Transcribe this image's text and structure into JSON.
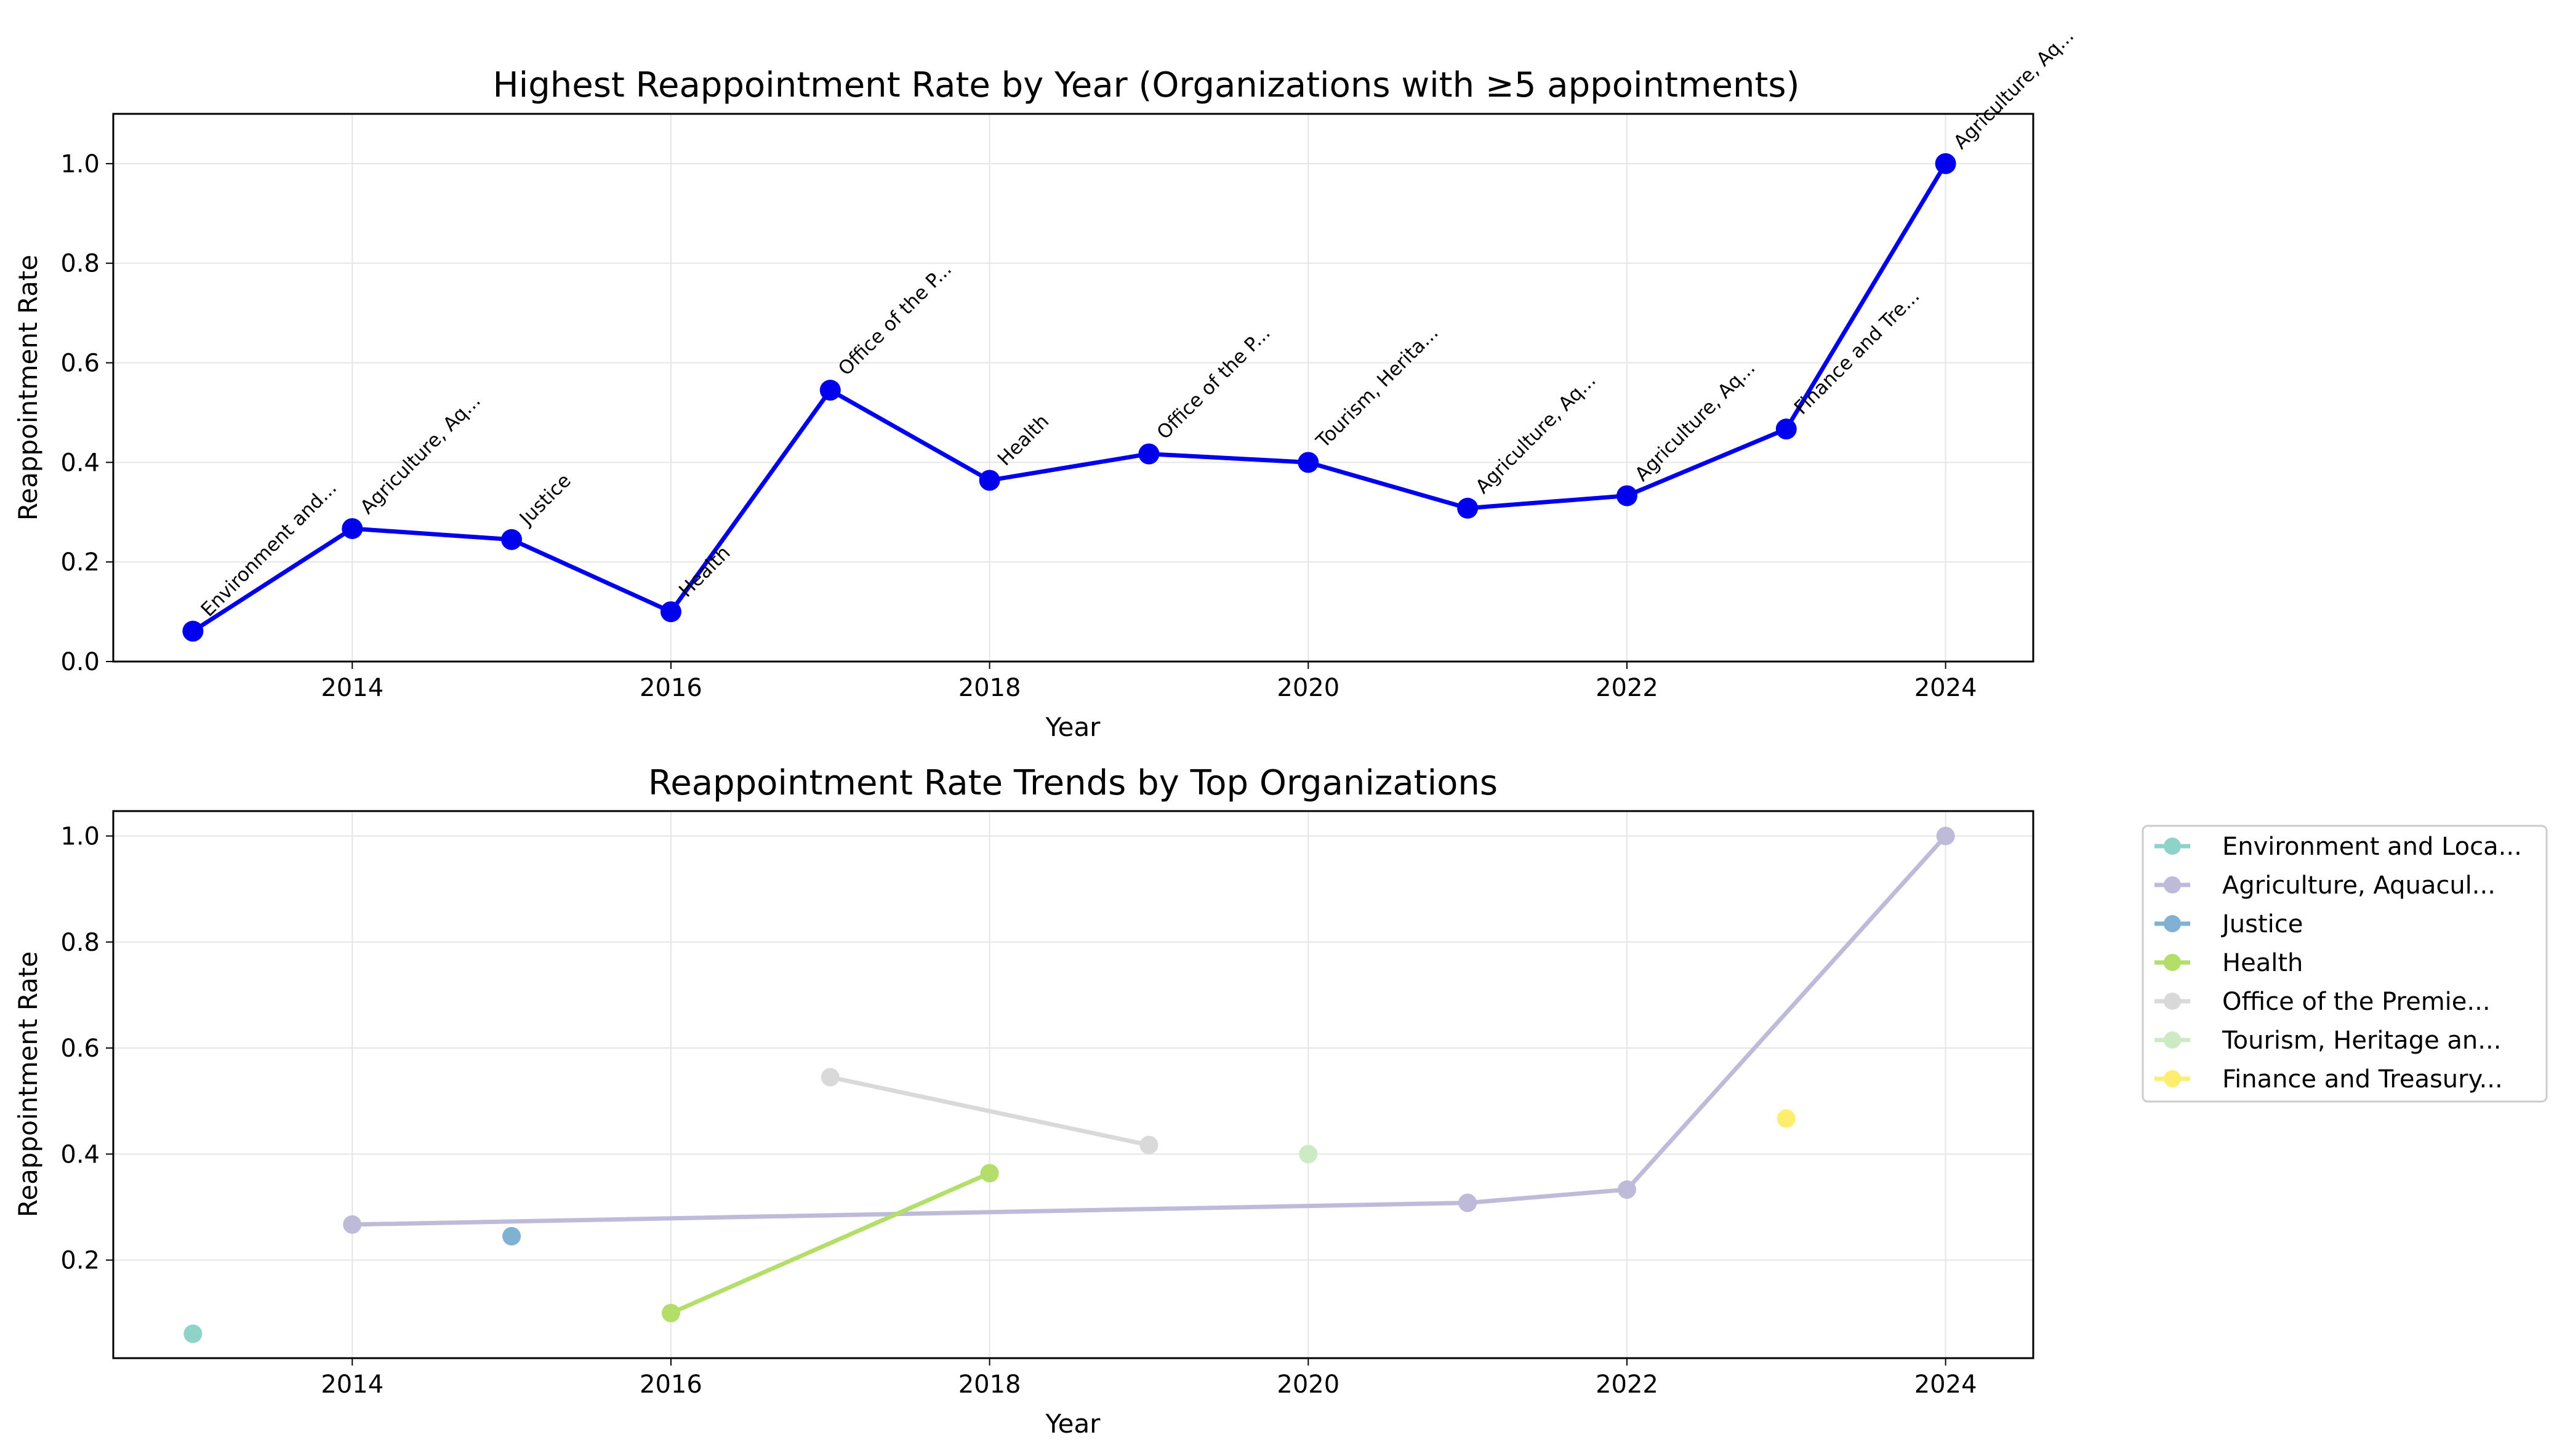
{
  "chart_data": [
    {
      "type": "line",
      "title": "Highest Reappointment Rate by Year (Organizations with ≥5 appointments)",
      "xlabel": "Year",
      "ylabel": "Reappointment Rate",
      "xlim": [
        2012.5,
        2024.55
      ],
      "ylim": [
        0,
        1.1
      ],
      "xticks": [
        "2014",
        "2016",
        "2018",
        "2020",
        "2022",
        "2024"
      ],
      "yticks": [
        "0.0",
        "0.2",
        "0.4",
        "0.6",
        "0.8",
        "1.0"
      ],
      "grid": true,
      "color": "#0000ee",
      "points": [
        {
          "x": 2013,
          "y": 0.061,
          "label": "Environment and..."
        },
        {
          "x": 2014,
          "y": 0.267,
          "label": "Agriculture, Aq..."
        },
        {
          "x": 2015,
          "y": 0.245,
          "label": "Justice"
        },
        {
          "x": 2016,
          "y": 0.1,
          "label": "Health"
        },
        {
          "x": 2017,
          "y": 0.545,
          "label": "Office of the P..."
        },
        {
          "x": 2018,
          "y": 0.364,
          "label": "Health"
        },
        {
          "x": 2019,
          "y": 0.417,
          "label": "Office of the P..."
        },
        {
          "x": 2020,
          "y": 0.4,
          "label": "Tourism, Herita..."
        },
        {
          "x": 2021,
          "y": 0.308,
          "label": "Agriculture, Aq..."
        },
        {
          "x": 2022,
          "y": 0.333,
          "label": "Agriculture, Aq..."
        },
        {
          "x": 2023,
          "y": 0.467,
          "label": "Finance and Tre..."
        },
        {
          "x": 2024,
          "y": 1.0,
          "label": "Agriculture, Aq..."
        }
      ]
    },
    {
      "type": "line",
      "title": "Reappointment Rate Trends by Top Organizations",
      "xlabel": "Year",
      "ylabel": "Reappointment Rate",
      "xlim": [
        2012.5,
        2024.55
      ],
      "ylim": [
        0.015,
        1.047
      ],
      "xticks": [
        "2014",
        "2016",
        "2018",
        "2020",
        "2022",
        "2024"
      ],
      "yticks": [
        "0.2",
        "0.4",
        "0.6",
        "0.8",
        "1.0"
      ],
      "grid": true,
      "legend": "outside-right",
      "series": [
        {
          "name": "Environment and Loca...",
          "color": "#8dd3c7",
          "x": [
            2013
          ],
          "y": [
            0.061
          ]
        },
        {
          "name": "Agriculture, Aquacul...",
          "color": "#bebada",
          "x": [
            2014,
            2021,
            2022,
            2024
          ],
          "y": [
            0.267,
            0.308,
            0.333,
            1.0
          ]
        },
        {
          "name": "Justice",
          "color": "#80b1d3",
          "x": [
            2015
          ],
          "y": [
            0.245
          ]
        },
        {
          "name": "Health",
          "color": "#b3de69",
          "x": [
            2016,
            2018
          ],
          "y": [
            0.1,
            0.364
          ]
        },
        {
          "name": "Office of the Premie...",
          "color": "#d9d9d9",
          "x": [
            2017,
            2019
          ],
          "y": [
            0.545,
            0.417
          ]
        },
        {
          "name": "Tourism, Heritage an...",
          "color": "#ccebc5",
          "x": [
            2020
          ],
          "y": [
            0.4
          ]
        },
        {
          "name": "Finance and Treasury...",
          "color": "#ffed6f",
          "x": [
            2023
          ],
          "y": [
            0.467
          ]
        }
      ]
    }
  ]
}
